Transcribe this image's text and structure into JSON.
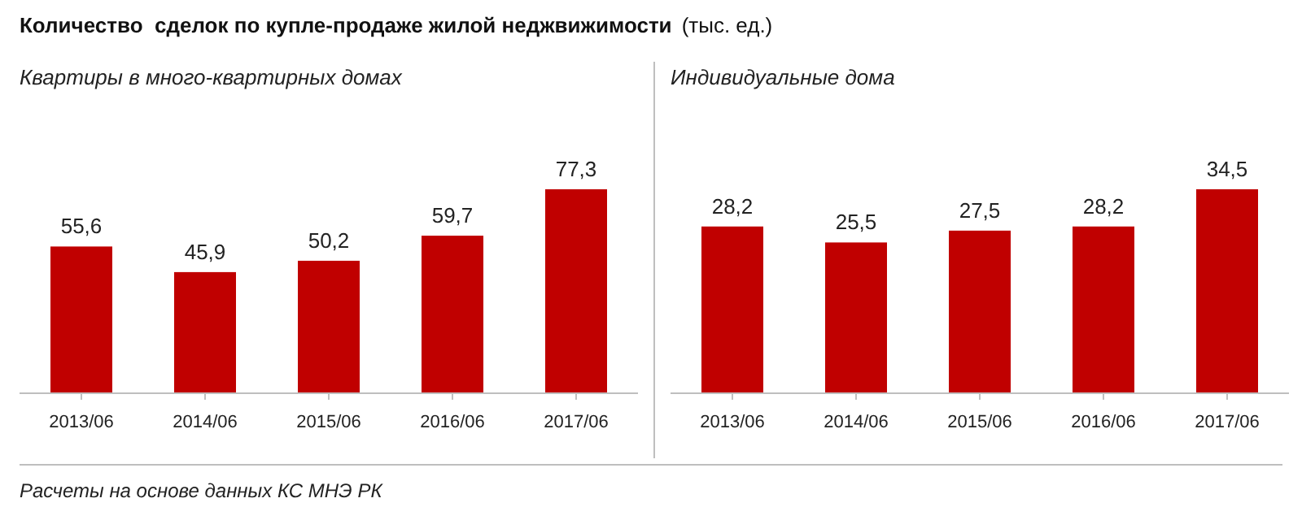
{
  "chart_data": [
    {
      "type": "bar",
      "title": "Квартиры в много-квартирных домах",
      "categories": [
        "2013/06",
        "2014/06",
        "2015/06",
        "2016/06",
        "2017/06"
      ],
      "values": [
        55.6,
        45.9,
        50.2,
        59.7,
        77.3
      ],
      "value_labels": [
        "55,6",
        "45,9",
        "50,2",
        "59,7",
        "77,3"
      ],
      "color": "#c00000",
      "tick_labels": "x",
      "annotations": [
        "Количество  сделок по купле-продаже жилой неджвижимости",
        "(тыс. ед.)",
        "Расчеты на основе данных КС МНЭ РК"
      ]
    },
    {
      "type": "bar",
      "title": "Индивидуальные дома",
      "categories": [
        "2013/06",
        "2014/06",
        "2015/06",
        "2016/06",
        "2017/06"
      ],
      "values": [
        28.2,
        25.5,
        27.5,
        28.2,
        34.5
      ],
      "value_labels": [
        "28,2",
        "25,5",
        "27,5",
        "28,2",
        "34,5"
      ],
      "color": "#c00000",
      "tick_labels": "x"
    }
  ]
}
